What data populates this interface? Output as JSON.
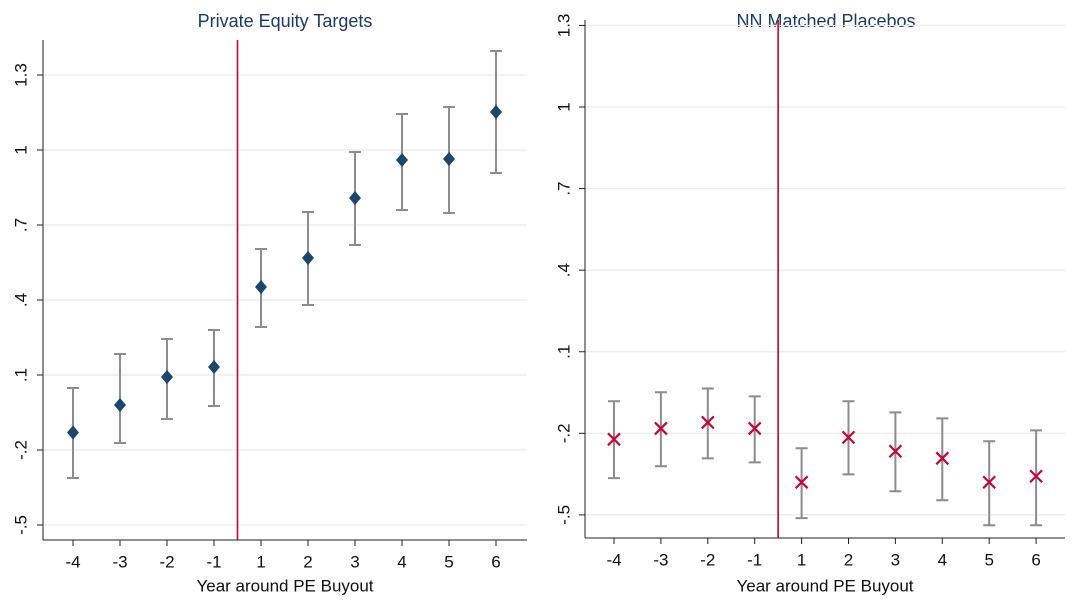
{
  "chart_data": [
    {
      "type": "errorbar",
      "title": "Private Equity Targets",
      "xlabel": "Year around PE Buyout",
      "categories": [
        "-4",
        "-3",
        "-2",
        "-1",
        "1",
        "2",
        "3",
        "4",
        "5",
        "6"
      ],
      "values": [
        -0.13,
        -0.02,
        0.092,
        0.132,
        0.452,
        0.568,
        0.808,
        0.96,
        0.964,
        1.152
      ],
      "lower": [
        -0.312,
        -0.172,
        -0.076,
        -0.024,
        0.292,
        0.38,
        0.62,
        0.76,
        0.748,
        0.908
      ],
      "upper": [
        0.048,
        0.184,
        0.244,
        0.28,
        0.604,
        0.752,
        0.992,
        1.144,
        1.172,
        1.396
      ],
      "marker": "diamond",
      "color": "#1a476f",
      "errorbar_color": "#8c8c8c",
      "vline_color": "#c10534",
      "ylim": [
        -0.56,
        1.44
      ],
      "yticks": [
        {
          "value": -0.5,
          "label": "-.5"
        },
        {
          "value": -0.2,
          "label": "-.2"
        },
        {
          "value": 0.1,
          "label": ".1"
        },
        {
          "value": 0.4,
          "label": ".4"
        },
        {
          "value": 0.7,
          "label": ".7"
        },
        1,
        1.3
      ],
      "grid": true
    },
    {
      "type": "errorbar",
      "title": "NN Matched Placebos",
      "xlabel": "Year around PE Buyout",
      "categories": [
        "-4",
        "-3",
        "-2",
        "-1",
        "1",
        "2",
        "3",
        "4",
        "5",
        "6"
      ],
      "values": [
        -0.222,
        -0.182,
        -0.16,
        -0.182,
        -0.38,
        -0.215,
        -0.266,
        -0.292,
        -0.38,
        -0.358
      ],
      "lower": [
        -0.365,
        -0.321,
        -0.292,
        -0.307,
        -0.512,
        -0.351,
        -0.413,
        -0.446,
        -0.538,
        -0.538
      ],
      "upper": [
        -0.082,
        -0.049,
        -0.035,
        -0.064,
        -0.255,
        -0.082,
        -0.123,
        -0.145,
        -0.229,
        -0.189
      ],
      "marker": "x",
      "color": "#c10534",
      "errorbar_color": "#8c8c8c",
      "vline_color": "#c10534",
      "ylim": [
        -0.585,
        1.32
      ],
      "yticks": [
        {
          "value": -0.5,
          "label": "-.5"
        },
        {
          "value": -0.2,
          "label": "-.2"
        },
        {
          "value": 0.1,
          "label": ".1"
        },
        {
          "value": 0.4,
          "label": ".4"
        },
        {
          "value": 0.7,
          "label": ".7"
        },
        1,
        1.3
      ],
      "grid": true
    }
  ]
}
